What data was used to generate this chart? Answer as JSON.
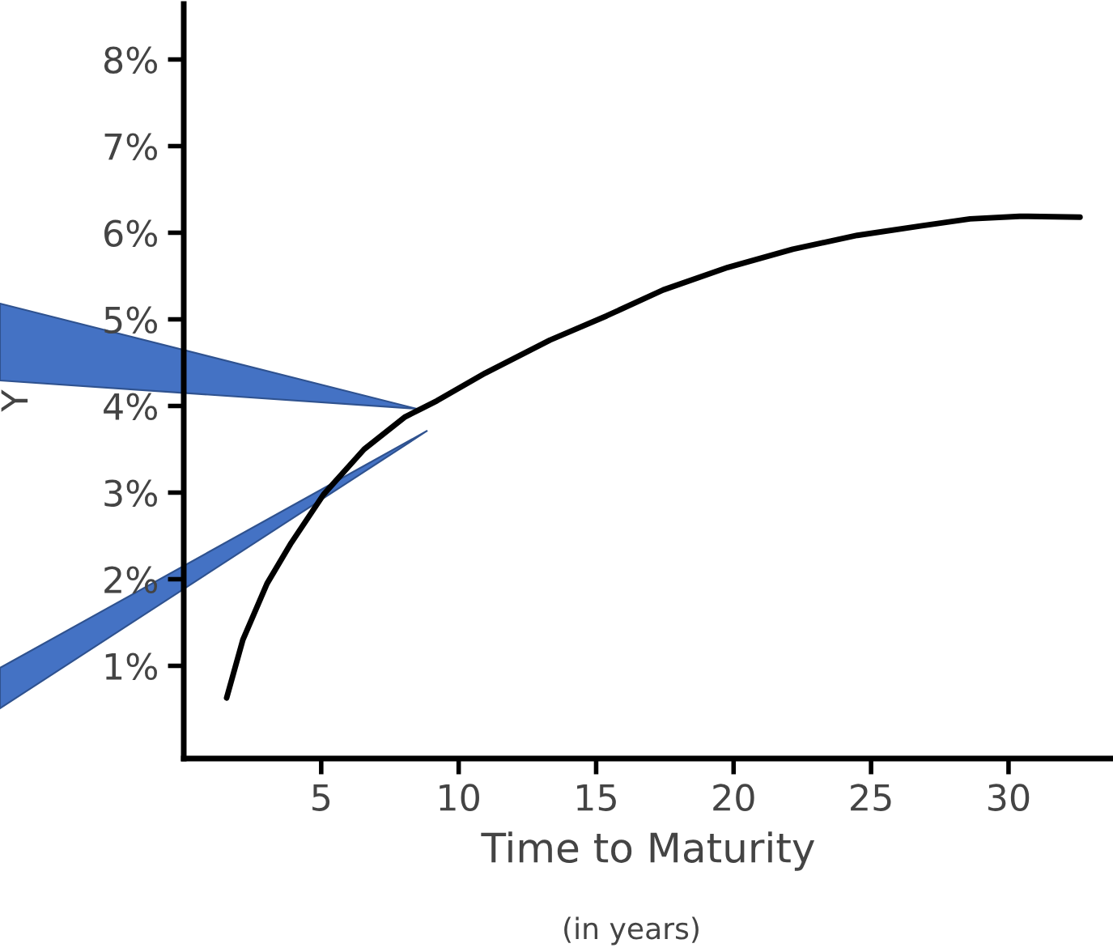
{
  "chart_data": {
    "type": "line",
    "xlabel": "Time to Maturity",
    "ylabel": "Y",
    "annotations": [
      "(in years)"
    ],
    "x": [
      1.56,
      2.15,
      3.03,
      3.91,
      5.09,
      6.56,
      8.03,
      9.21,
      10.97,
      13.32,
      15.38,
      17.44,
      19.79,
      22.15,
      24.5,
      26.85,
      28.6,
      30.4,
      32.6
    ],
    "series": [
      {
        "color": "#000000",
        "values": [
          0.63,
          1.3,
          1.95,
          2.42,
          2.98,
          3.5,
          3.87,
          4.06,
          4.38,
          4.76,
          5.04,
          5.34,
          5.6,
          5.81,
          5.97,
          6.08,
          6.16,
          6.19,
          6.18
        ]
      }
    ],
    "xlim": [
      0,
      33.8
    ],
    "ylim": [
      -0.07,
      8.64
    ],
    "xticks": [
      5,
      10,
      15,
      20,
      25,
      30
    ],
    "yticks": [
      {
        "value": 1,
        "label": "1%"
      },
      {
        "value": 2,
        "label": "2%"
      },
      {
        "value": 3,
        "label": "3%"
      },
      {
        "value": 4,
        "label": "4%"
      },
      {
        "value": 5,
        "label": "5%"
      },
      {
        "value": 6,
        "label": "6%"
      },
      {
        "value": 7,
        "label": "7%"
      },
      {
        "value": 8,
        "label": "8%"
      }
    ],
    "grid": false,
    "legend": false,
    "marker": "none",
    "line_style": "solid"
  }
}
